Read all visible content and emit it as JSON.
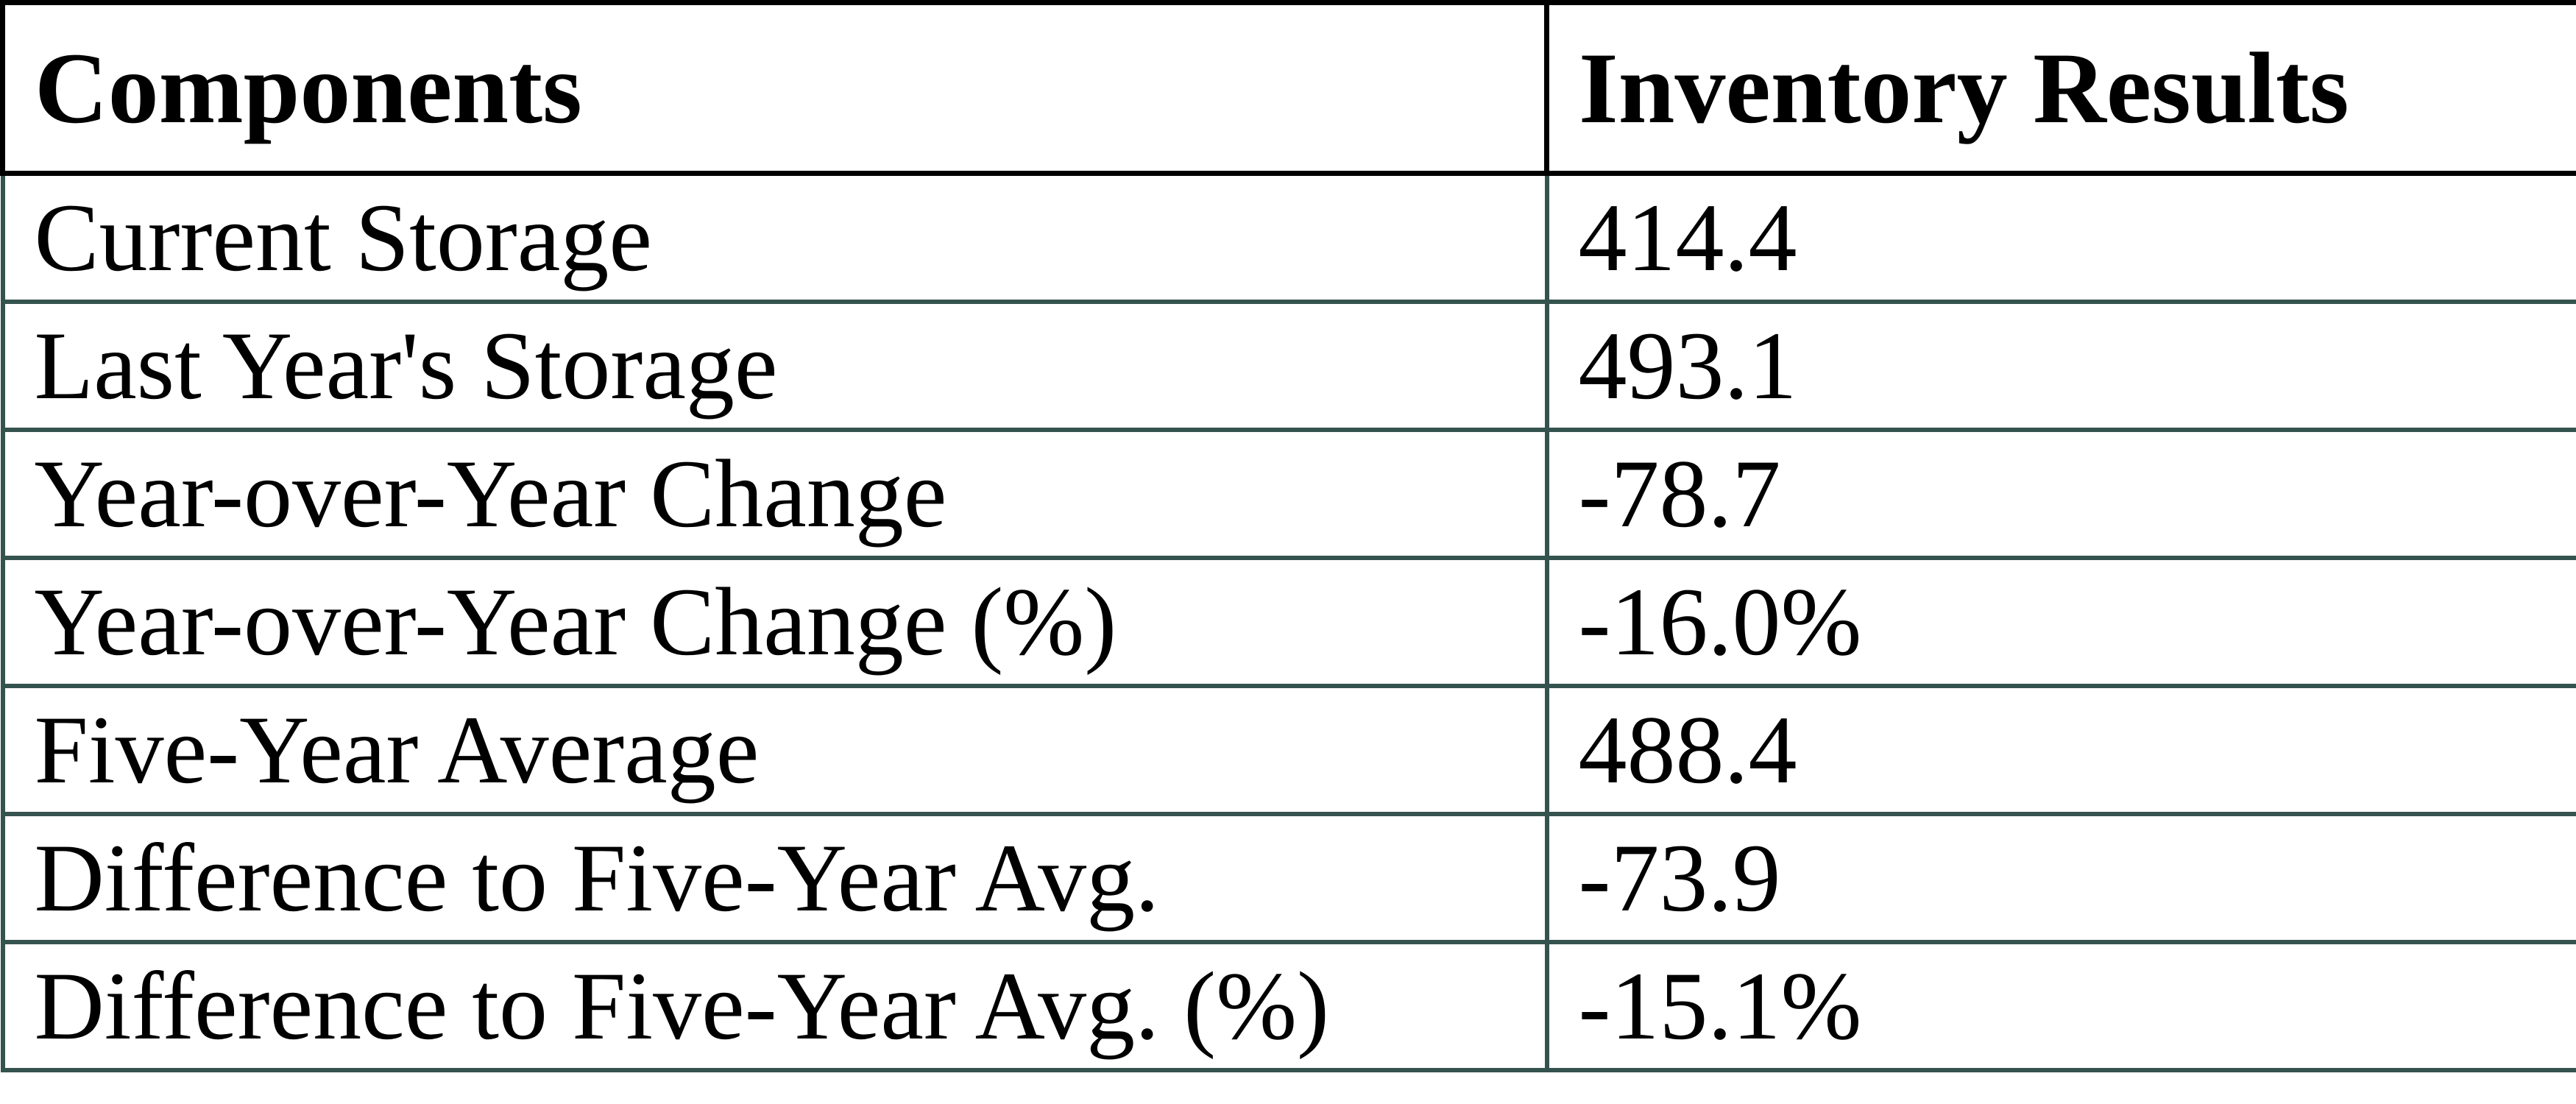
{
  "chart_data": {
    "type": "table",
    "columns": [
      "Components",
      "Inventory Results"
    ],
    "rows": [
      [
        "Current Storage",
        "414.4"
      ],
      [
        "Last Year's Storage",
        "493.1"
      ],
      [
        "Year-over-Year Change",
        "-78.7"
      ],
      [
        "Year-over-Year Change (%)",
        "-16.0%"
      ],
      [
        "Five-Year Average",
        "488.4"
      ],
      [
        "Difference to Five-Year Avg.",
        "-73.9"
      ],
      [
        "Difference to Five-Year Avg. (%)",
        "-15.1%"
      ]
    ],
    "layout": {
      "header_position": "top",
      "grid": "on",
      "column_split_ratio": [
        0.6,
        0.4
      ]
    }
  },
  "colors": {
    "header_border": "#000000",
    "body_border": "#35534e",
    "text": "#000000",
    "background": "#ffffff"
  }
}
